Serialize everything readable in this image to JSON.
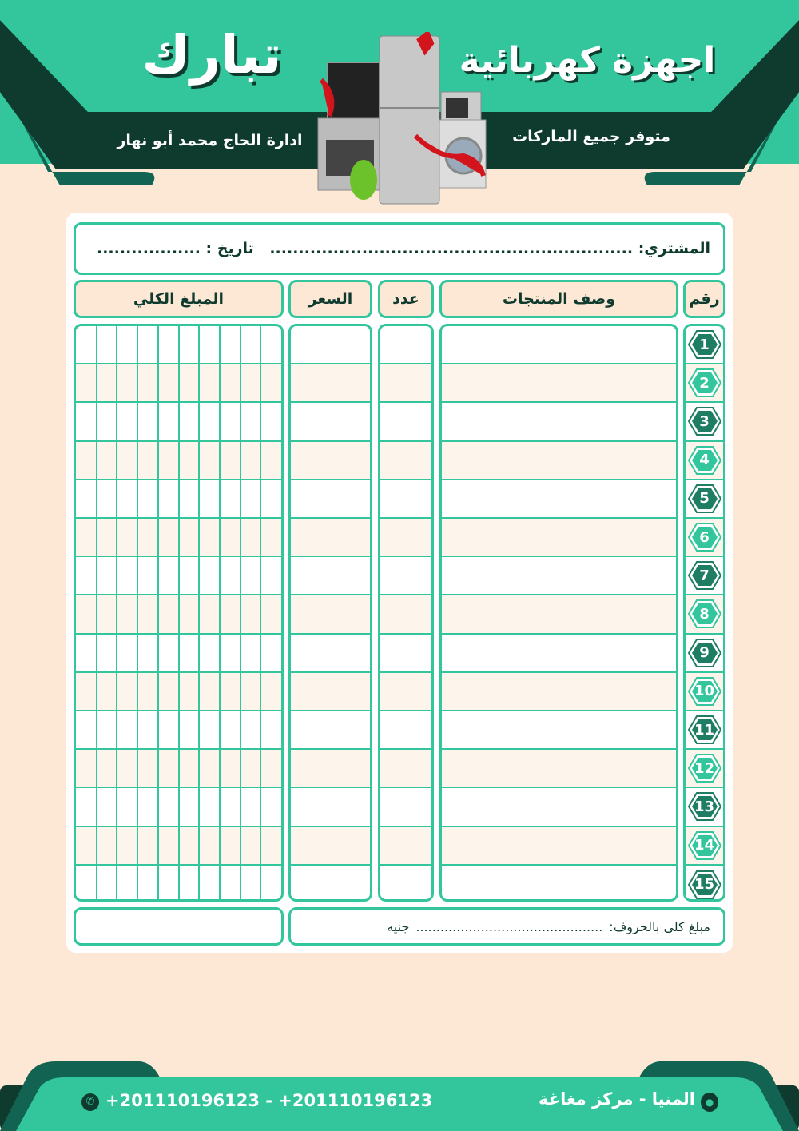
{
  "header": {
    "brand": "تبارك",
    "title": "اجهزة كهربائية",
    "tagline": "متوفر جميع الماركات",
    "management": "ادارة الحاج محمد أبو نهار"
  },
  "customer": {
    "buyer_label": "المشتري:",
    "buyer_dots": "...............................................................",
    "date_label": "تاريخ :",
    "date_dots": ".................."
  },
  "table": {
    "headers": {
      "number": "رقم",
      "description": "وصف المنتجات",
      "quantity": "عدد",
      "price": "السعر",
      "total": "المبلغ الكلي"
    },
    "row_numbers": [
      "1",
      "2",
      "3",
      "4",
      "5",
      "6",
      "7",
      "8",
      "9",
      "10",
      "11",
      "12",
      "13",
      "14",
      "15"
    ]
  },
  "summary": {
    "words_label": "مبلغ كلى بالحروف:",
    "words_dots": "..............................................",
    "currency": "جنيه"
  },
  "footer": {
    "phones": "+201110196123 - +201110196123",
    "address": "المنيا - مركز مغاغة"
  },
  "colors": {
    "teal": "#33c69d",
    "dark": "#0f3a2e",
    "mid": "#136352",
    "background": "#fde8d6",
    "badge_dark": "#1e7d63"
  }
}
